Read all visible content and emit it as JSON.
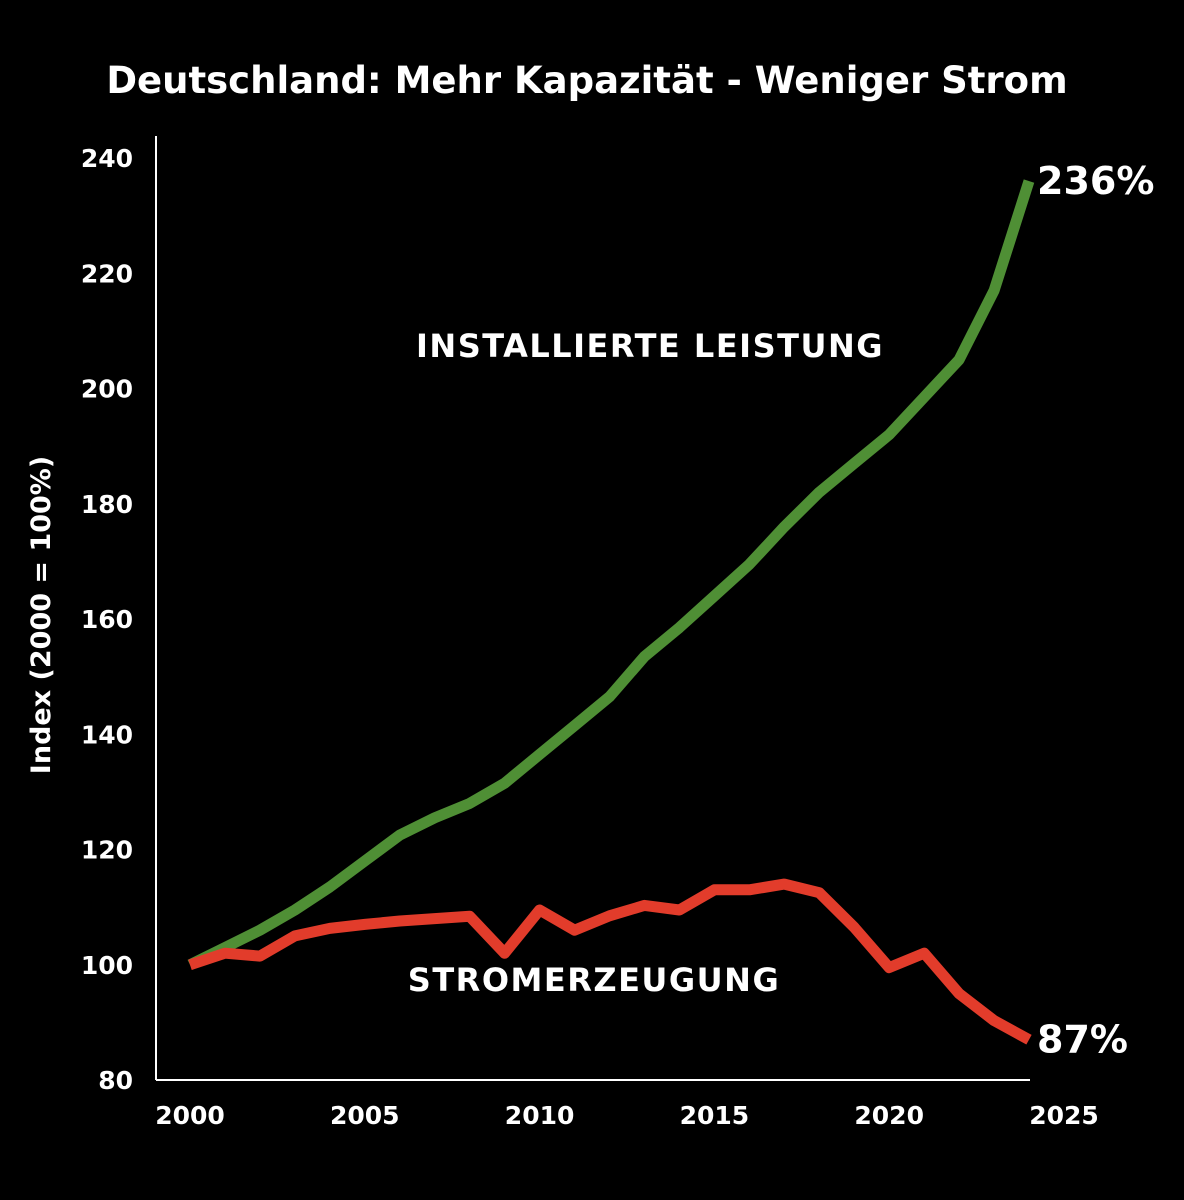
{
  "chart_data": {
    "type": "line",
    "title": "Deutschland: Mehr Kapazität - Weniger Strom",
    "xlabel": "",
    "ylabel": "Index (2000 = 100%)",
    "xlim": [
      2000,
      2025
    ],
    "ylim": [
      80,
      240
    ],
    "x_ticks": [
      "2000",
      "2005",
      "2010",
      "2015",
      "2020",
      "2025"
    ],
    "y_ticks": [
      "80",
      "100",
      "120",
      "140",
      "160",
      "180",
      "200",
      "220",
      "240"
    ],
    "grid": false,
    "legend": "none",
    "x": [
      2000,
      2001,
      2002,
      2003,
      2004,
      2005,
      2006,
      2007,
      2008,
      2009,
      2010,
      2011,
      2012,
      2013,
      2014,
      2015,
      2016,
      2017,
      2018,
      2019,
      2020,
      2021,
      2022,
      2023,
      2024
    ],
    "series": [
      {
        "label": "INSTALLIERTE LEISTUNG",
        "color": "#4f8f35",
        "end_label": "236%",
        "values": [
          100,
          103,
          106,
          109.5,
          113.5,
          118,
          122.5,
          125.5,
          128,
          131.5,
          136.5,
          141.5,
          146.5,
          153.5,
          158.5,
          164,
          169.5,
          176,
          182,
          187,
          192,
          198.5,
          205,
          217,
          236
        ]
      },
      {
        "label": "STROMERZEUGUNG",
        "color": "#e23c2b",
        "end_label": "87%",
        "values": [
          100,
          102,
          101.5,
          105,
          106.3,
          107,
          107.6,
          108,
          108.4,
          102,
          109.5,
          106,
          108.5,
          110.3,
          109.5,
          113,
          113,
          114,
          112.5,
          106.5,
          99.5,
          102,
          95,
          90.3,
          87
        ]
      }
    ]
  }
}
